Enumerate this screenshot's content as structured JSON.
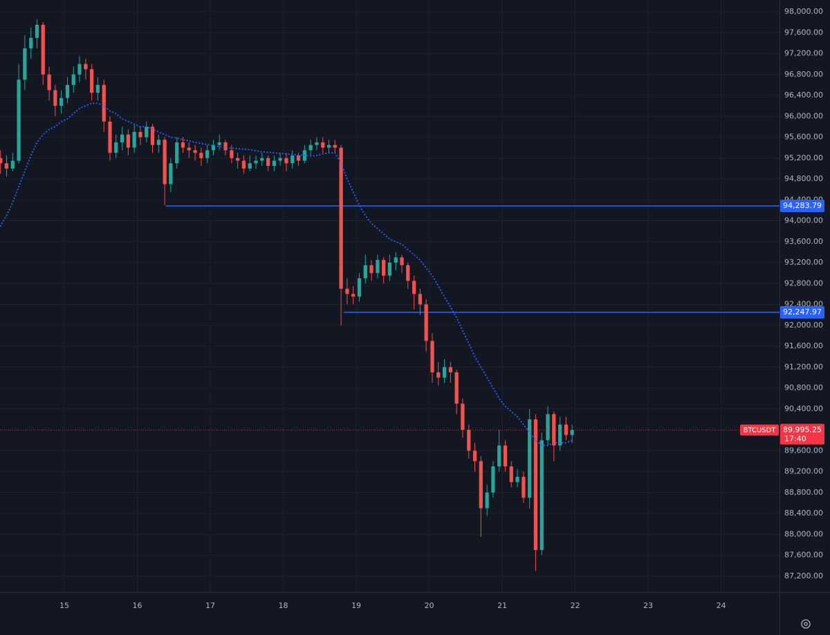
{
  "chart_data": {
    "type": "candlestick",
    "up_color": "#26a69a",
    "down_color": "#ef5350",
    "grid": true,
    "x": [
      14.125,
      14.208,
      14.292,
      14.375,
      14.458,
      14.542,
      14.625,
      14.708,
      14.792,
      14.875,
      14.958,
      15.042,
      15.125,
      15.208,
      15.292,
      15.375,
      15.458,
      15.542,
      15.625,
      15.708,
      15.792,
      15.875,
      15.958,
      16.042,
      16.125,
      16.208,
      16.292,
      16.375,
      16.458,
      16.542,
      16.625,
      16.708,
      16.792,
      16.875,
      16.958,
      17.042,
      17.125,
      17.208,
      17.292,
      17.375,
      17.458,
      17.542,
      17.625,
      17.708,
      17.792,
      17.875,
      17.958,
      18.042,
      18.125,
      18.208,
      18.292,
      18.375,
      18.458,
      18.542,
      18.625,
      18.708,
      18.792,
      18.875,
      18.958,
      19.042,
      19.125,
      19.208,
      19.292,
      19.375,
      19.458,
      19.542,
      19.625,
      19.708,
      19.792,
      19.875,
      19.958,
      20.042,
      20.125,
      20.208,
      20.292,
      20.375,
      20.458,
      20.542,
      20.625,
      20.708,
      20.792,
      20.875,
      20.958,
      21.042,
      21.125,
      21.208,
      21.292,
      21.375,
      21.458,
      21.542,
      21.625,
      21.708,
      21.792,
      21.875,
      21.958
    ],
    "open": [
      95200,
      95100,
      95000,
      95150,
      96700,
      97300,
      97500,
      97750,
      96800,
      96500,
      96200,
      96350,
      96600,
      96800,
      97000,
      96900,
      96450,
      96600,
      95900,
      95300,
      95500,
      95650,
      95400,
      95700,
      95600,
      95800,
      95450,
      95550,
      94700,
      95100,
      95500,
      95400,
      95350,
      95300,
      95200,
      95350,
      95450,
      95500,
      95350,
      95200,
      95150,
      95000,
      95100,
      95150,
      95200,
      95050,
      95150,
      95200,
      95100,
      95250,
      95150,
      95350,
      95450,
      95500,
      95400,
      95450,
      95400,
      92700,
      92600,
      92550,
      92900,
      93150,
      93000,
      93250,
      92950,
      93200,
      93300,
      93150,
      92850,
      92600,
      92400,
      91700,
      91100,
      91000,
      91200,
      91100,
      90500,
      90000,
      89600,
      89400,
      88500,
      88800,
      89300,
      89700,
      89300,
      89000,
      89100,
      88700,
      90200,
      87700,
      89800,
      90300,
      89700,
      90100,
      89900
    ],
    "high": [
      95350,
      95250,
      95300,
      97000,
      97550,
      97700,
      97850,
      97800,
      96950,
      96600,
      96500,
      96750,
      96950,
      97150,
      97100,
      97000,
      96750,
      96700,
      96000,
      95650,
      95800,
      95750,
      95850,
      95800,
      95900,
      95850,
      95650,
      95600,
      95200,
      95600,
      95600,
      95500,
      95450,
      95400,
      95450,
      95550,
      95650,
      95550,
      95450,
      95300,
      95250,
      95250,
      95250,
      95300,
      95250,
      95250,
      95300,
      95300,
      95350,
      95300,
      95450,
      95550,
      95600,
      95600,
      95550,
      95550,
      95450,
      92900,
      92750,
      93000,
      93350,
      93250,
      93350,
      93300,
      93350,
      93400,
      93350,
      93200,
      92950,
      92700,
      92500,
      91850,
      91300,
      91350,
      91300,
      91150,
      90600,
      90100,
      89750,
      89500,
      88950,
      89400,
      90000,
      89800,
      89400,
      89250,
      89200,
      90400,
      90300,
      89950,
      90450,
      90350,
      90250,
      90250,
      90100
    ],
    "low": [
      94900,
      94850,
      94950,
      95100,
      96500,
      97100,
      97300,
      96600,
      96300,
      96000,
      96050,
      96250,
      96450,
      96650,
      96700,
      96300,
      96300,
      95700,
      95150,
      95200,
      95350,
      95250,
      95300,
      95450,
      95500,
      95300,
      95300,
      94300,
      94550,
      95000,
      95300,
      95200,
      95150,
      95050,
      95100,
      95250,
      95350,
      95250,
      95100,
      95000,
      94900,
      94950,
      95000,
      95050,
      94950,
      94950,
      95050,
      94950,
      95000,
      95050,
      95100,
      95250,
      95350,
      95300,
      95300,
      95300,
      92000,
      92400,
      92400,
      92450,
      92800,
      92850,
      92900,
      92800,
      92850,
      93050,
      93000,
      92700,
      92300,
      92200,
      91500,
      90900,
      90850,
      90900,
      90900,
      90300,
      89850,
      89450,
      89200,
      87950,
      88350,
      88700,
      89200,
      89200,
      88900,
      88900,
      88600,
      88500,
      87300,
      87600,
      89700,
      89400,
      89600,
      89800,
      89750
    ],
    "close": [
      95100,
      95000,
      95150,
      96700,
      97300,
      97500,
      97750,
      96800,
      96500,
      96200,
      96350,
      96600,
      96800,
      97000,
      96900,
      96450,
      96600,
      95900,
      95300,
      95500,
      95650,
      95400,
      95700,
      95600,
      95800,
      95450,
      95550,
      94700,
      95100,
      95500,
      95400,
      95350,
      95300,
      95200,
      95350,
      95450,
      95500,
      95350,
      95200,
      95150,
      95000,
      95100,
      95150,
      95200,
      95050,
      95150,
      95200,
      95100,
      95250,
      95150,
      95350,
      95450,
      95500,
      95400,
      95450,
      95400,
      92700,
      92600,
      92550,
      92900,
      93150,
      93000,
      93250,
      92950,
      93200,
      93300,
      93150,
      92850,
      92600,
      92400,
      91700,
      91100,
      91000,
      91200,
      91100,
      90500,
      90000,
      89600,
      89400,
      88500,
      88800,
      89300,
      89700,
      89300,
      89000,
      89100,
      88700,
      90200,
      87700,
      89800,
      90300,
      89700,
      90100,
      89900,
      89995.25
    ],
    "overlays": [
      {
        "color": "#2962ff",
        "style": "dotted",
        "values": [
          93900,
          94100,
          94350,
          94650,
          94950,
          95250,
          95500,
          95650,
          95750,
          95800,
          95900,
          95950,
          96050,
          96150,
          96200,
          96250,
          96250,
          96200,
          96100,
          96050,
          95950,
          95900,
          95850,
          95800,
          95800,
          95750,
          95700,
          95650,
          95600,
          95580,
          95550,
          95530,
          95500,
          95480,
          95460,
          95440,
          95420,
          95400,
          95390,
          95380,
          95370,
          95360,
          95340,
          95320,
          95310,
          95300,
          95290,
          95280,
          95270,
          95260,
          95250,
          95240,
          95250,
          95280,
          95300,
          95300,
          95100,
          94800,
          94550,
          94300,
          94100,
          93950,
          93850,
          93750,
          93650,
          93600,
          93550,
          93450,
          93350,
          93250,
          93100,
          92950,
          92750,
          92550,
          92350,
          92150,
          91900,
          91650,
          91400,
          91200,
          91000,
          90800,
          90600,
          90450,
          90350,
          90250,
          90100,
          89950,
          89800,
          89700,
          89700,
          89750,
          89750,
          89750,
          89800
        ]
      }
    ],
    "levels": [
      {
        "value": 94283.79,
        "label": "94,283.79",
        "start": 16.39,
        "color": "#2962ff"
      },
      {
        "value": 92247.97,
        "label": "92,247.97",
        "start": 18.83,
        "color": "#2962ff"
      }
    ],
    "last_price": {
      "symbol": "BTCUSDT",
      "value": 89995.25,
      "label": "89,995.25",
      "countdown": "17:40",
      "color": "#f23645"
    },
    "xlim": [
      14.118,
      24.8
    ],
    "ylim": [
      86893,
      98225
    ],
    "xticks": [
      15,
      16,
      17,
      18,
      19,
      20,
      21,
      22,
      23,
      24
    ],
    "yticks": [
      {
        "value": 87200,
        "label": "87,200.00"
      },
      {
        "value": 87600,
        "label": "87,600.00"
      },
      {
        "value": 88000,
        "label": "88,000.00"
      },
      {
        "value": 88400,
        "label": "88,400.00"
      },
      {
        "value": 88800,
        "label": "88,800.00"
      },
      {
        "value": 89200,
        "label": "89,200.00"
      },
      {
        "value": 89600,
        "label": "89,600.00"
      },
      {
        "value": 90400,
        "label": "90,400.00"
      },
      {
        "value": 90800,
        "label": "90,800.00"
      },
      {
        "value": 91200,
        "label": "91,200.00"
      },
      {
        "value": 91600,
        "label": "91,600.00"
      },
      {
        "value": 92000,
        "label": "92,000.00"
      },
      {
        "value": 92400,
        "label": "92,400.00"
      },
      {
        "value": 92800,
        "label": "92,800.00"
      },
      {
        "value": 93200,
        "label": "93,200.00"
      },
      {
        "value": 93600,
        "label": "93,600.00"
      },
      {
        "value": 94000,
        "label": "94,000.00"
      },
      {
        "value": 94400,
        "label": "94,400.00"
      },
      {
        "value": 94800,
        "label": "94,800.00"
      },
      {
        "value": 95200,
        "label": "95,200.00"
      },
      {
        "value": 95600,
        "label": "95,600.00"
      },
      {
        "value": 96000,
        "label": "96,000.00"
      },
      {
        "value": 96400,
        "label": "96,400.00"
      },
      {
        "value": 96800,
        "label": "96,800.00"
      },
      {
        "value": 97200,
        "label": "97,200.00"
      },
      {
        "value": 97600,
        "label": "97,600.00"
      },
      {
        "value": 98000,
        "label": "98,000.00"
      }
    ]
  }
}
